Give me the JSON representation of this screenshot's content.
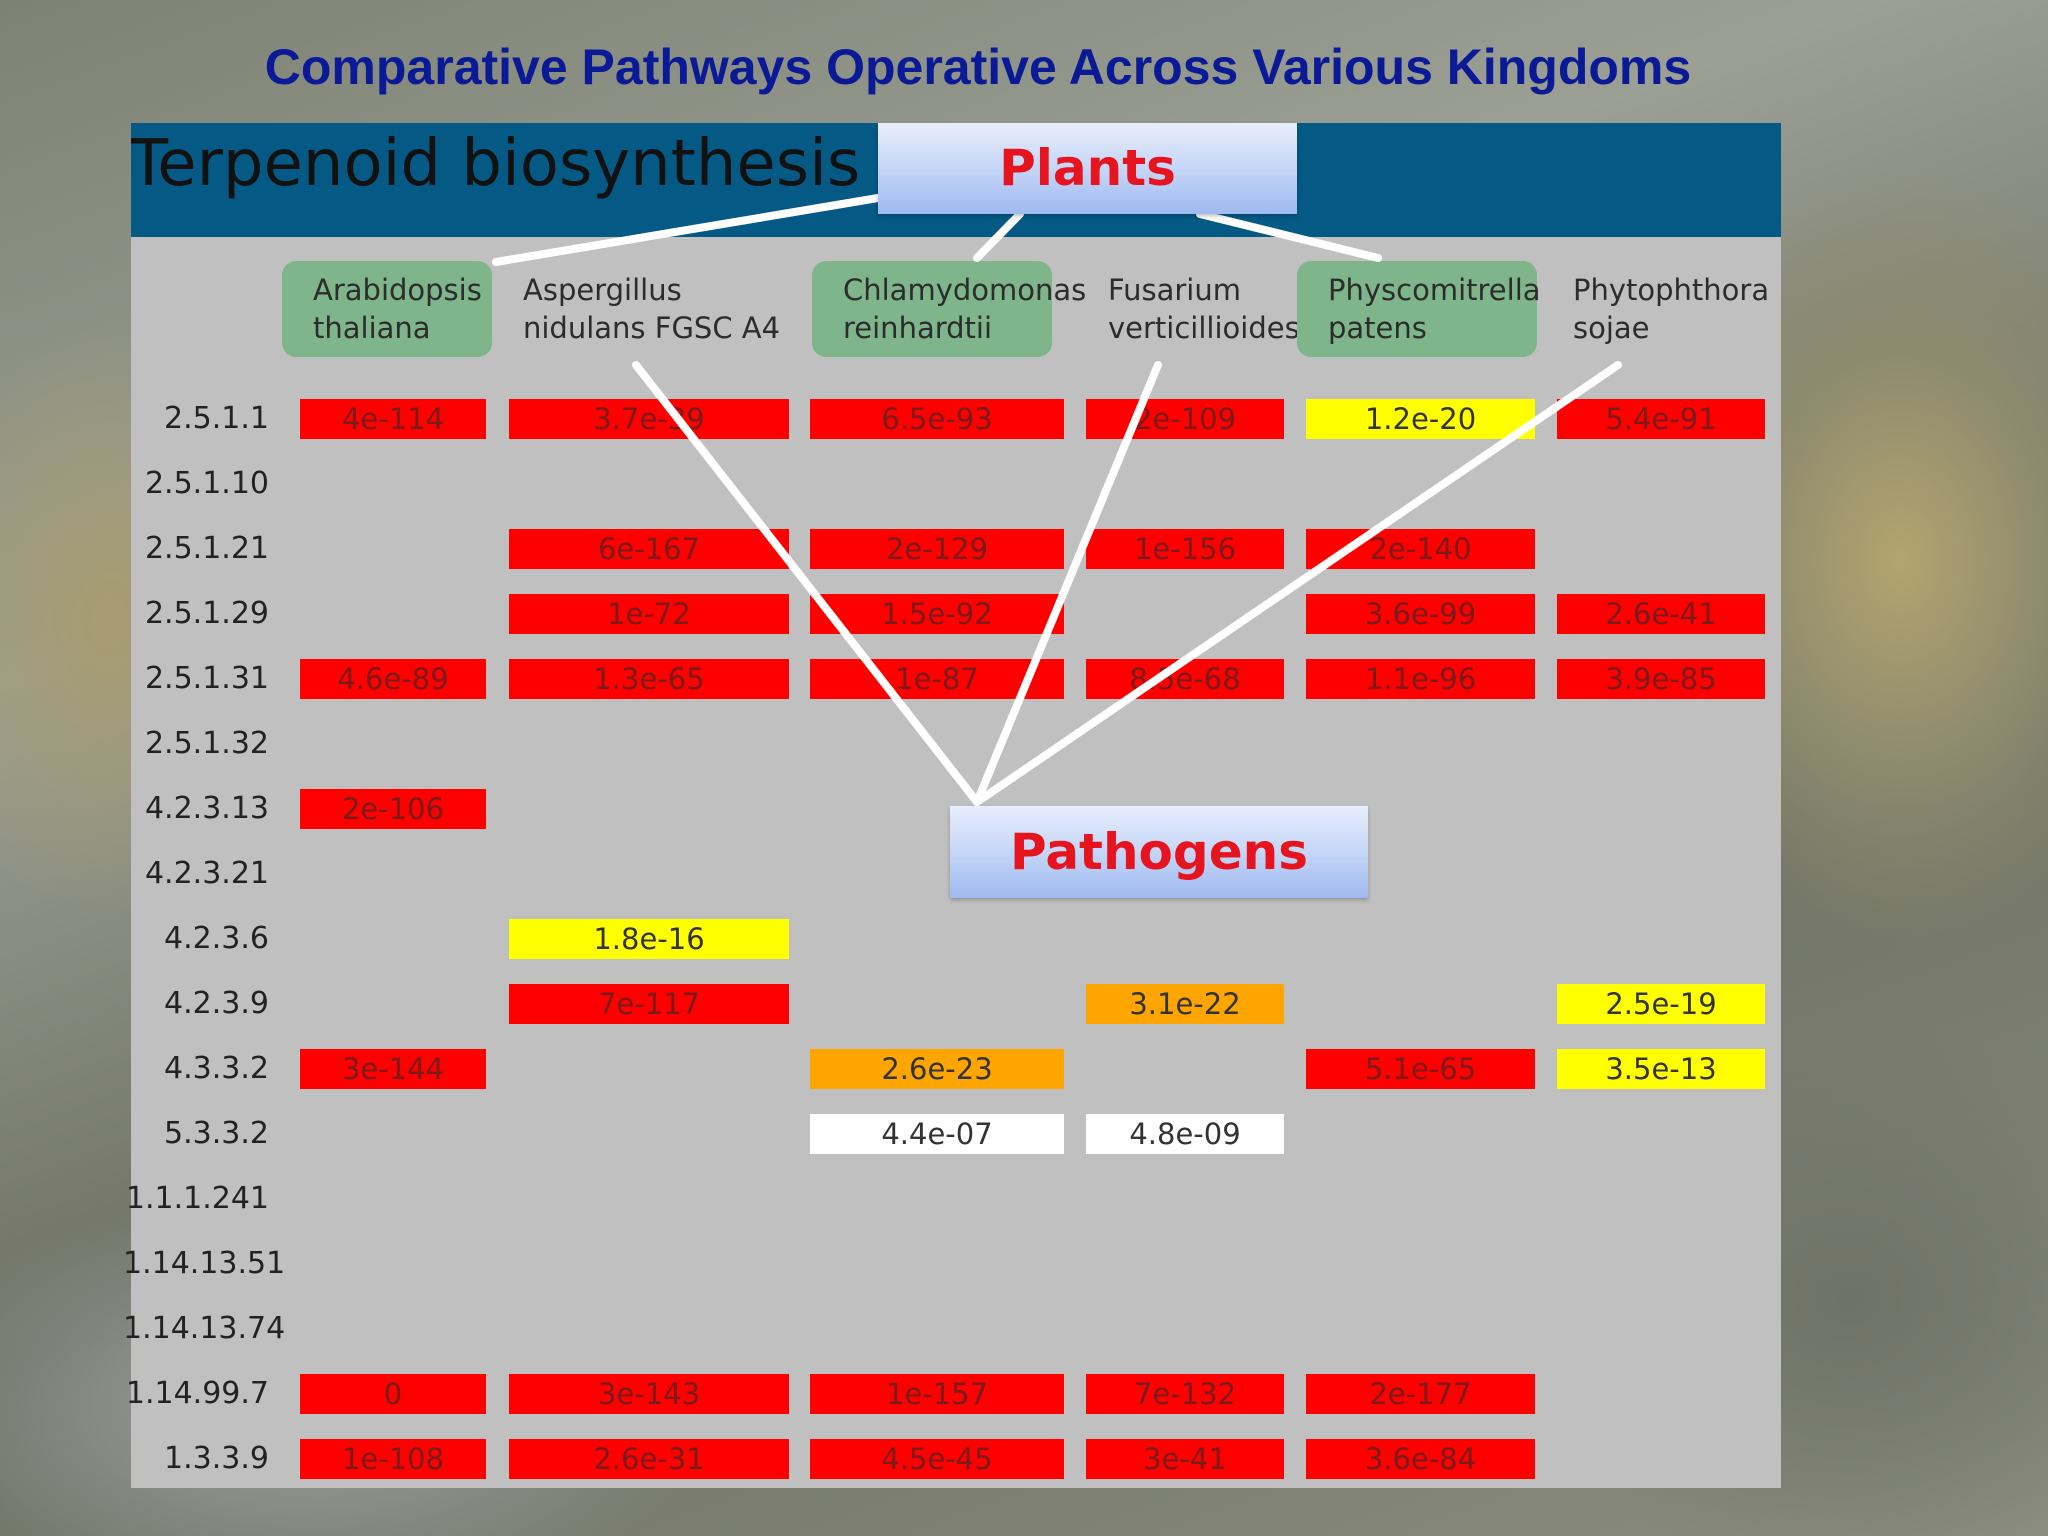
{
  "title": "Comparative Pathways Operative Across Various Kingdoms",
  "panel_title": "Terpenoid biosynthesis",
  "callouts": {
    "plants": "Plants",
    "pathogens": "Pathogens"
  },
  "species": [
    {
      "line1": "Arabidopsis",
      "line2": "thaliana",
      "group": "plant"
    },
    {
      "line1": "Aspergillus",
      "line2": "nidulans FGSC A4",
      "group": "pathogen"
    },
    {
      "line1": "Chlamydomonas",
      "line2": "reinhardtii",
      "group": "plant"
    },
    {
      "line1": "Fusarium",
      "line2": "verticillioides",
      "group": "pathogen"
    },
    {
      "line1": "Physcomitrella",
      "line2": "patens",
      "group": "plant"
    },
    {
      "line1": "Phytophthora",
      "line2": "sojae",
      "group": "pathogen"
    }
  ],
  "rows": [
    {
      "ec": "2.5.1.1",
      "cells": [
        [
          "4e-114",
          "red"
        ],
        [
          "3.7e-39",
          "red"
        ],
        [
          "6.5e-93",
          "red"
        ],
        [
          "2e-109",
          "red"
        ],
        [
          "1.2e-20",
          "yellow"
        ],
        [
          "5.4e-91",
          "red"
        ]
      ]
    },
    {
      "ec": "2.5.1.10",
      "cells": [
        null,
        null,
        null,
        null,
        null,
        null
      ]
    },
    {
      "ec": "2.5.1.21",
      "cells": [
        null,
        [
          "6e-167",
          "red"
        ],
        [
          "2e-129",
          "red"
        ],
        [
          "1e-156",
          "red"
        ],
        [
          "2e-140",
          "red"
        ],
        null
      ]
    },
    {
      "ec": "2.5.1.29",
      "cells": [
        null,
        [
          "1e-72",
          "red"
        ],
        [
          "1.5e-92",
          "red"
        ],
        null,
        [
          "3.6e-99",
          "red"
        ],
        [
          "2.6e-41",
          "red"
        ]
      ]
    },
    {
      "ec": "2.5.1.31",
      "cells": [
        [
          "4.6e-89",
          "red"
        ],
        [
          "1.3e-65",
          "red"
        ],
        [
          "1e-87",
          "red"
        ],
        [
          "8.5e-68",
          "red"
        ],
        [
          "1.1e-96",
          "red"
        ],
        [
          "3.9e-85",
          "red"
        ]
      ]
    },
    {
      "ec": "2.5.1.32",
      "cells": [
        null,
        null,
        null,
        null,
        null,
        null
      ]
    },
    {
      "ec": "4.2.3.13",
      "cells": [
        [
          "2e-106",
          "red"
        ],
        null,
        null,
        null,
        null,
        null
      ]
    },
    {
      "ec": "4.2.3.21",
      "cells": [
        null,
        null,
        null,
        null,
        null,
        null
      ]
    },
    {
      "ec": "4.2.3.6",
      "cells": [
        null,
        [
          "1.8e-16",
          "yellow"
        ],
        null,
        null,
        null,
        null
      ]
    },
    {
      "ec": "4.2.3.9",
      "cells": [
        null,
        [
          "7e-117",
          "red"
        ],
        null,
        [
          "3.1e-22",
          "orange"
        ],
        null,
        [
          "2.5e-19",
          "yellow"
        ]
      ]
    },
    {
      "ec": "4.3.3.2",
      "cells": [
        [
          "3e-144",
          "red"
        ],
        null,
        [
          "2.6e-23",
          "orange"
        ],
        null,
        [
          "5.1e-65",
          "red"
        ],
        [
          "3.5e-13",
          "yellow"
        ]
      ]
    },
    {
      "ec": "5.3.3.2",
      "cells": [
        null,
        null,
        [
          "4.4e-07",
          "white"
        ],
        [
          "4.8e-09",
          "white"
        ],
        null,
        null
      ]
    },
    {
      "ec": "1.1.1.241",
      "cells": [
        null,
        null,
        null,
        null,
        null,
        null
      ]
    },
    {
      "ec": "1.14.13.51",
      "cells": [
        null,
        null,
        null,
        null,
        null,
        null
      ]
    },
    {
      "ec": "1.14.13.74",
      "cells": [
        null,
        null,
        null,
        null,
        null,
        null
      ]
    },
    {
      "ec": "1.14.99.7",
      "cells": [
        [
          "0",
          "red"
        ],
        [
          "3e-143",
          "red"
        ],
        [
          "1e-157",
          "red"
        ],
        [
          "7e-132",
          "red"
        ],
        [
          "2e-177",
          "red"
        ],
        null
      ]
    },
    {
      "ec": "1.3.3.9",
      "cells": [
        [
          "1e-108",
          "red"
        ],
        [
          "2.6e-31",
          "red"
        ],
        [
          "4.5e-45",
          "red"
        ],
        [
          "3e-41",
          "red"
        ],
        [
          "3.6e-84",
          "red"
        ],
        null
      ]
    }
  ],
  "colors": {
    "title": "#0a1a96",
    "header_band": "#055a85",
    "panel": "#c0c0c0",
    "plant_highlight": "#7fb58a",
    "red": "#ff0000",
    "yellow": "#ffff00",
    "orange": "#ffa500",
    "white": "#ffffff",
    "callout_text": "#e6141e"
  }
}
